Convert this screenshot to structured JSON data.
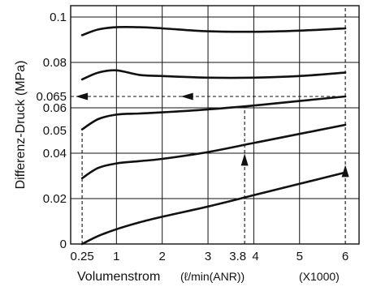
{
  "chart_data": {
    "type": "line",
    "ylabel": "Differenz-Druck (MPa)",
    "xlabel_main": "Volumenstrom",
    "xlabel_unit": "(ℓ/min(ANR))",
    "x_multiplier": "(X1000)",
    "xlim": [
      0,
      6.3
    ],
    "ylim": [
      0,
      0.105
    ],
    "x_ticks": [
      {
        "value": 0.25,
        "label": "0.25"
      },
      {
        "value": 1,
        "label": "1"
      },
      {
        "value": 2,
        "label": "2"
      },
      {
        "value": 3,
        "label": "3"
      },
      {
        "value": 3.8,
        "label": "3.8"
      },
      {
        "value": 4,
        "label": "4"
      },
      {
        "value": 5,
        "label": "5"
      },
      {
        "value": 6,
        "label": "6"
      }
    ],
    "y_ticks": [
      {
        "value": 0,
        "label": "0"
      },
      {
        "value": 0.02,
        "label": "0.02"
      },
      {
        "value": 0.04,
        "label": "0.04"
      },
      {
        "value": 0.05,
        "label": "0.05"
      },
      {
        "value": 0.06,
        "label": "0.06"
      },
      {
        "value": 0.065,
        "label": "0.065"
      },
      {
        "value": 0.08,
        "label": "0.08"
      },
      {
        "value": 0.1,
        "label": "0.1"
      }
    ],
    "grid_x": [
      1,
      2,
      3,
      4,
      5
    ],
    "grid_y": [
      0.02,
      0.04,
      0.06,
      0.08,
      0.1
    ],
    "series": [
      {
        "values": [
          [
            0.25,
            0.092
          ],
          [
            0.6,
            0.0945
          ],
          [
            1.0,
            0.0955
          ],
          [
            1.5,
            0.0955
          ],
          [
            2.0,
            0.095
          ],
          [
            3.0,
            0.0937
          ],
          [
            4.0,
            0.0935
          ],
          [
            5.0,
            0.094
          ],
          [
            6.0,
            0.095
          ]
        ]
      },
      {
        "values": [
          [
            0.25,
            0.0725
          ],
          [
            0.6,
            0.0755
          ],
          [
            1.0,
            0.0765
          ],
          [
            1.5,
            0.0745
          ],
          [
            2.0,
            0.074
          ],
          [
            3.0,
            0.0733
          ],
          [
            4.0,
            0.0733
          ],
          [
            5.0,
            0.074
          ],
          [
            6.0,
            0.0755
          ]
        ]
      },
      {
        "values": [
          [
            0.25,
            0.0505
          ],
          [
            0.6,
            0.055
          ],
          [
            1.0,
            0.057
          ],
          [
            1.5,
            0.0575
          ],
          [
            2.0,
            0.058
          ],
          [
            3.0,
            0.0593
          ],
          [
            4.0,
            0.061
          ],
          [
            5.0,
            0.063
          ],
          [
            6.0,
            0.065
          ]
        ]
      },
      {
        "values": [
          [
            0.25,
            0.029
          ],
          [
            0.6,
            0.0335
          ],
          [
            1.0,
            0.0355
          ],
          [
            1.5,
            0.0365
          ],
          [
            2.0,
            0.0375
          ],
          [
            3.0,
            0.0405
          ],
          [
            4.0,
            0.0445
          ],
          [
            5.0,
            0.0485
          ],
          [
            6.0,
            0.0525
          ]
        ]
      },
      {
        "values": [
          [
            0.25,
            0.0
          ],
          [
            0.6,
            0.0035
          ],
          [
            1.0,
            0.0065
          ],
          [
            1.5,
            0.0095
          ],
          [
            2.0,
            0.012
          ],
          [
            3.0,
            0.0165
          ],
          [
            4.0,
            0.0215
          ],
          [
            5.0,
            0.0265
          ],
          [
            6.0,
            0.0315
          ]
        ]
      }
    ],
    "guides": [
      {
        "type": "vertical",
        "x": 0.25,
        "y_from": 0,
        "y_to": 0.0505
      },
      {
        "type": "vertical",
        "x": 3.8,
        "y_from": 0,
        "y_to": 0.0605
      },
      {
        "type": "vertical",
        "x": 6,
        "y_from": 0,
        "y_to": 0.105
      },
      {
        "type": "horizontal",
        "y": 0.065,
        "x_from": 0,
        "x_to": 6
      },
      {
        "type": "horizontal",
        "y": 0.06,
        "x_from": 0,
        "x_to": 3.8
      }
    ],
    "arrows": [
      {
        "direction": "up",
        "x": 3.8,
        "y": 0.037
      },
      {
        "direction": "up",
        "x": 6,
        "y": 0.032
      },
      {
        "direction": "left",
        "x": 0.25,
        "y": 0.065
      },
      {
        "direction": "left",
        "x": 2.55,
        "y": 0.065
      }
    ]
  }
}
